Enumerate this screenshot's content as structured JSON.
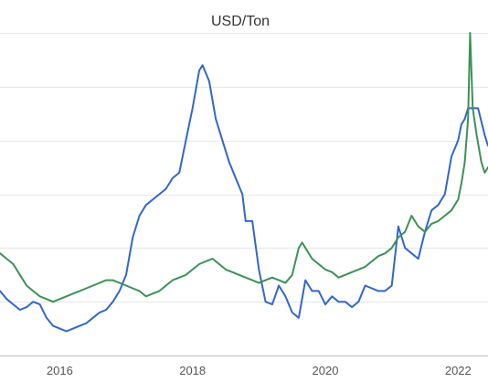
{
  "chart_data": {
    "type": "line",
    "title": "USD/Ton",
    "xlabel": "",
    "ylabel": "",
    "x_ticks": [
      "2016",
      "2018",
      "2020",
      "2022"
    ],
    "xlim": [
      2015.1,
      2022.45
    ],
    "ylim": [
      0,
      6
    ],
    "grid": true,
    "legend": "none",
    "series": [
      {
        "color": "#3366cc",
        "points": [
          [
            2015.1,
            1.2
          ],
          [
            2015.2,
            1.05
          ],
          [
            2015.3,
            0.95
          ],
          [
            2015.4,
            0.85
          ],
          [
            2015.5,
            0.9
          ],
          [
            2015.6,
            1.0
          ],
          [
            2015.7,
            0.95
          ],
          [
            2015.8,
            0.7
          ],
          [
            2015.9,
            0.55
          ],
          [
            2016.0,
            0.5
          ],
          [
            2016.1,
            0.45
          ],
          [
            2016.2,
            0.5
          ],
          [
            2016.3,
            0.55
          ],
          [
            2016.4,
            0.6
          ],
          [
            2016.5,
            0.7
          ],
          [
            2016.6,
            0.8
          ],
          [
            2016.7,
            0.85
          ],
          [
            2016.8,
            1.0
          ],
          [
            2016.9,
            1.2
          ],
          [
            2017.0,
            1.5
          ],
          [
            2017.1,
            2.2
          ],
          [
            2017.2,
            2.6
          ],
          [
            2017.3,
            2.8
          ],
          [
            2017.4,
            2.9
          ],
          [
            2017.5,
            3.0
          ],
          [
            2017.6,
            3.1
          ],
          [
            2017.7,
            3.3
          ],
          [
            2017.8,
            3.4
          ],
          [
            2017.9,
            4.0
          ],
          [
            2018.0,
            4.6
          ],
          [
            2018.1,
            5.3
          ],
          [
            2018.15,
            5.4
          ],
          [
            2018.25,
            5.1
          ],
          [
            2018.35,
            4.4
          ],
          [
            2018.45,
            4.0
          ],
          [
            2018.55,
            3.6
          ],
          [
            2018.65,
            3.3
          ],
          [
            2018.75,
            3.0
          ],
          [
            2018.8,
            2.5
          ],
          [
            2018.9,
            2.5
          ],
          [
            2019.0,
            1.6
          ],
          [
            2019.1,
            1.0
          ],
          [
            2019.2,
            0.95
          ],
          [
            2019.3,
            1.3
          ],
          [
            2019.4,
            1.1
          ],
          [
            2019.5,
            0.8
          ],
          [
            2019.6,
            0.7
          ],
          [
            2019.7,
            1.4
          ],
          [
            2019.8,
            1.2
          ],
          [
            2019.9,
            1.2
          ],
          [
            2020.0,
            0.95
          ],
          [
            2020.1,
            1.1
          ],
          [
            2020.2,
            1.0
          ],
          [
            2020.3,
            1.0
          ],
          [
            2020.4,
            0.9
          ],
          [
            2020.5,
            1.0
          ],
          [
            2020.6,
            1.3
          ],
          [
            2020.7,
            1.25
          ],
          [
            2020.8,
            1.2
          ],
          [
            2020.9,
            1.2
          ],
          [
            2021.0,
            1.3
          ],
          [
            2021.1,
            2.4
          ],
          [
            2021.2,
            2.0
          ],
          [
            2021.3,
            1.9
          ],
          [
            2021.4,
            1.8
          ],
          [
            2021.5,
            2.3
          ],
          [
            2021.6,
            2.7
          ],
          [
            2021.7,
            2.8
          ],
          [
            2021.8,
            3.0
          ],
          [
            2021.9,
            3.7
          ],
          [
            2022.0,
            4.0
          ],
          [
            2022.05,
            4.3
          ],
          [
            2022.1,
            4.4
          ],
          [
            2022.15,
            4.6
          ],
          [
            2022.2,
            4.6
          ],
          [
            2022.3,
            4.6
          ],
          [
            2022.4,
            4.1
          ],
          [
            2022.45,
            3.9
          ]
        ]
      },
      {
        "color": "#3d9157",
        "points": [
          [
            2015.1,
            1.9
          ],
          [
            2015.2,
            1.8
          ],
          [
            2015.3,
            1.7
          ],
          [
            2015.4,
            1.5
          ],
          [
            2015.5,
            1.3
          ],
          [
            2015.6,
            1.2
          ],
          [
            2015.7,
            1.1
          ],
          [
            2015.8,
            1.05
          ],
          [
            2015.9,
            1.0
          ],
          [
            2016.0,
            1.05
          ],
          [
            2016.1,
            1.1
          ],
          [
            2016.2,
            1.15
          ],
          [
            2016.3,
            1.2
          ],
          [
            2016.4,
            1.25
          ],
          [
            2016.5,
            1.3
          ],
          [
            2016.6,
            1.35
          ],
          [
            2016.7,
            1.4
          ],
          [
            2016.8,
            1.4
          ],
          [
            2016.9,
            1.35
          ],
          [
            2017.0,
            1.3
          ],
          [
            2017.1,
            1.25
          ],
          [
            2017.2,
            1.2
          ],
          [
            2017.3,
            1.1
          ],
          [
            2017.4,
            1.15
          ],
          [
            2017.5,
            1.2
          ],
          [
            2017.6,
            1.3
          ],
          [
            2017.7,
            1.4
          ],
          [
            2017.8,
            1.45
          ],
          [
            2017.9,
            1.5
          ],
          [
            2018.0,
            1.6
          ],
          [
            2018.1,
            1.7
          ],
          [
            2018.2,
            1.75
          ],
          [
            2018.3,
            1.8
          ],
          [
            2018.4,
            1.7
          ],
          [
            2018.5,
            1.6
          ],
          [
            2018.6,
            1.55
          ],
          [
            2018.7,
            1.5
          ],
          [
            2018.8,
            1.45
          ],
          [
            2018.9,
            1.4
          ],
          [
            2019.0,
            1.35
          ],
          [
            2019.1,
            1.4
          ],
          [
            2019.2,
            1.45
          ],
          [
            2019.3,
            1.4
          ],
          [
            2019.4,
            1.35
          ],
          [
            2019.5,
            1.5
          ],
          [
            2019.6,
            2.0
          ],
          [
            2019.65,
            2.1
          ],
          [
            2019.7,
            2.0
          ],
          [
            2019.8,
            1.8
          ],
          [
            2019.9,
            1.7
          ],
          [
            2020.0,
            1.6
          ],
          [
            2020.1,
            1.55
          ],
          [
            2020.2,
            1.45
          ],
          [
            2020.3,
            1.5
          ],
          [
            2020.4,
            1.55
          ],
          [
            2020.5,
            1.6
          ],
          [
            2020.6,
            1.65
          ],
          [
            2020.7,
            1.75
          ],
          [
            2020.8,
            1.85
          ],
          [
            2020.9,
            1.9
          ],
          [
            2021.0,
            2.0
          ],
          [
            2021.1,
            2.2
          ],
          [
            2021.2,
            2.3
          ],
          [
            2021.3,
            2.6
          ],
          [
            2021.4,
            2.4
          ],
          [
            2021.5,
            2.3
          ],
          [
            2021.6,
            2.45
          ],
          [
            2021.7,
            2.5
          ],
          [
            2021.8,
            2.6
          ],
          [
            2021.9,
            2.7
          ],
          [
            2022.0,
            2.9
          ],
          [
            2022.05,
            3.2
          ],
          [
            2022.1,
            3.6
          ],
          [
            2022.15,
            4.4
          ],
          [
            2022.18,
            6.0
          ],
          [
            2022.22,
            4.6
          ],
          [
            2022.28,
            4.1
          ],
          [
            2022.35,
            3.6
          ],
          [
            2022.4,
            3.4
          ],
          [
            2022.45,
            3.5
          ]
        ]
      }
    ]
  }
}
